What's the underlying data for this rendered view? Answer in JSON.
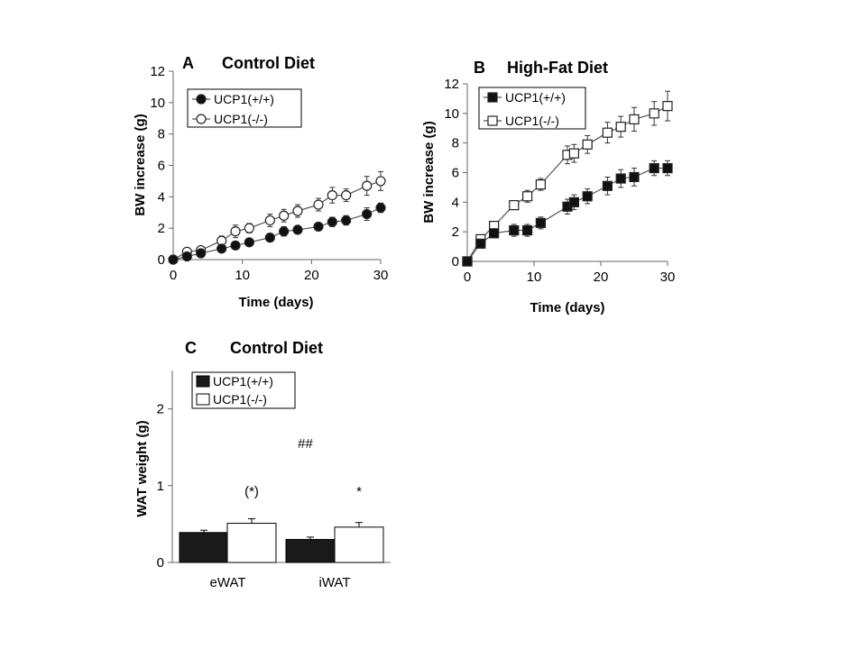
{
  "chart_data": [
    {
      "type": "line",
      "panel_label": "A",
      "title": "Control Diet",
      "xlabel": "Time (days)",
      "ylabel": "BW increase (g)",
      "xlim": [
        0,
        30
      ],
      "ylim": [
        0,
        12
      ],
      "xticks": [
        "0",
        "10",
        "20",
        "30"
      ],
      "yticks": [
        "0",
        "2",
        "4",
        "6",
        "8",
        "10",
        "12"
      ],
      "legend_position": "top-left",
      "series": [
        {
          "name": "UCP1(+/+)",
          "marker": "filled-circle",
          "x": [
            0,
            2,
            4,
            7,
            9,
            11,
            14,
            16,
            18,
            21,
            23,
            25,
            28,
            30
          ],
          "y": [
            0,
            0.2,
            0.4,
            0.7,
            0.9,
            1.1,
            1.4,
            1.8,
            1.9,
            2.1,
            2.4,
            2.5,
            2.9,
            3.3
          ],
          "err": [
            0,
            0.1,
            0.1,
            0.2,
            0.2,
            0.2,
            0.2,
            0.3,
            0.2,
            0.2,
            0.3,
            0.3,
            0.4,
            0.3
          ]
        },
        {
          "name": "UCP1(-/-)",
          "marker": "open-circle",
          "x": [
            0,
            2,
            4,
            7,
            9,
            11,
            14,
            16,
            18,
            21,
            23,
            25,
            28,
            30
          ],
          "y": [
            0,
            0.5,
            0.6,
            1.2,
            1.8,
            2.0,
            2.5,
            2.8,
            3.1,
            3.5,
            4.1,
            4.1,
            4.7,
            5.0
          ],
          "err": [
            0,
            0.2,
            0.2,
            0.3,
            0.4,
            0.3,
            0.4,
            0.4,
            0.4,
            0.4,
            0.5,
            0.4,
            0.6,
            0.6
          ]
        }
      ]
    },
    {
      "type": "line",
      "panel_label": "B",
      "title": "High-Fat Diet",
      "xlabel": "Time (days)",
      "ylabel": "BW increase (g)",
      "xlim": [
        0,
        30
      ],
      "ylim": [
        0,
        12
      ],
      "xticks": [
        "0",
        "10",
        "20",
        "30"
      ],
      "yticks": [
        "0",
        "2",
        "4",
        "6",
        "8",
        "10",
        "12"
      ],
      "legend_position": "top-left",
      "series": [
        {
          "name": "UCP1(+/+)",
          "marker": "filled-square",
          "x": [
            0,
            2,
            4,
            7,
            9,
            11,
            15,
            16,
            18,
            21,
            23,
            25,
            28,
            30
          ],
          "y": [
            0,
            1.2,
            1.9,
            2.1,
            2.1,
            2.6,
            3.7,
            4.0,
            4.4,
            5.1,
            5.6,
            5.7,
            6.3,
            6.3
          ],
          "err": [
            0,
            0.2,
            0.3,
            0.4,
            0.4,
            0.4,
            0.5,
            0.5,
            0.5,
            0.6,
            0.6,
            0.6,
            0.5,
            0.5
          ]
        },
        {
          "name": "UCP1(-/-)",
          "marker": "open-square",
          "x": [
            0,
            2,
            4,
            7,
            9,
            11,
            15,
            16,
            18,
            21,
            23,
            25,
            28,
            30
          ],
          "y": [
            0,
            1.5,
            2.4,
            3.8,
            4.4,
            5.2,
            7.2,
            7.3,
            7.9,
            8.7,
            9.1,
            9.6,
            10.0,
            10.5
          ],
          "err": [
            0,
            0.3,
            0.3,
            0.3,
            0.4,
            0.4,
            0.6,
            0.6,
            0.6,
            0.7,
            0.7,
            0.8,
            0.8,
            1.0
          ]
        }
      ]
    },
    {
      "type": "bar",
      "panel_label": "C",
      "title": "Control Diet",
      "xlabel": "",
      "ylabel": "WAT weight (g)",
      "ylim": [
        0,
        2.5
      ],
      "yticks": [
        "0",
        "1",
        "2"
      ],
      "categories": [
        "eWAT",
        "iWAT"
      ],
      "legend_position": "top-left",
      "series": [
        {
          "name": "UCP1(+/+)",
          "fill": "#1a1a1a",
          "values": [
            0.39,
            0.3
          ],
          "err": [
            0.03,
            0.03
          ]
        },
        {
          "name": "UCP1(-/-)",
          "fill": "#ffffff",
          "values": [
            0.51,
            0.46
          ],
          "err": [
            0.06,
            0.06
          ]
        }
      ],
      "annotations": [
        {
          "text": "(*)",
          "category": "eWAT",
          "y": 0.93
        },
        {
          "text": "*",
          "category": "iWAT",
          "y": 0.93
        },
        {
          "text": "##",
          "category": "between",
          "y": 1.55
        }
      ]
    }
  ]
}
